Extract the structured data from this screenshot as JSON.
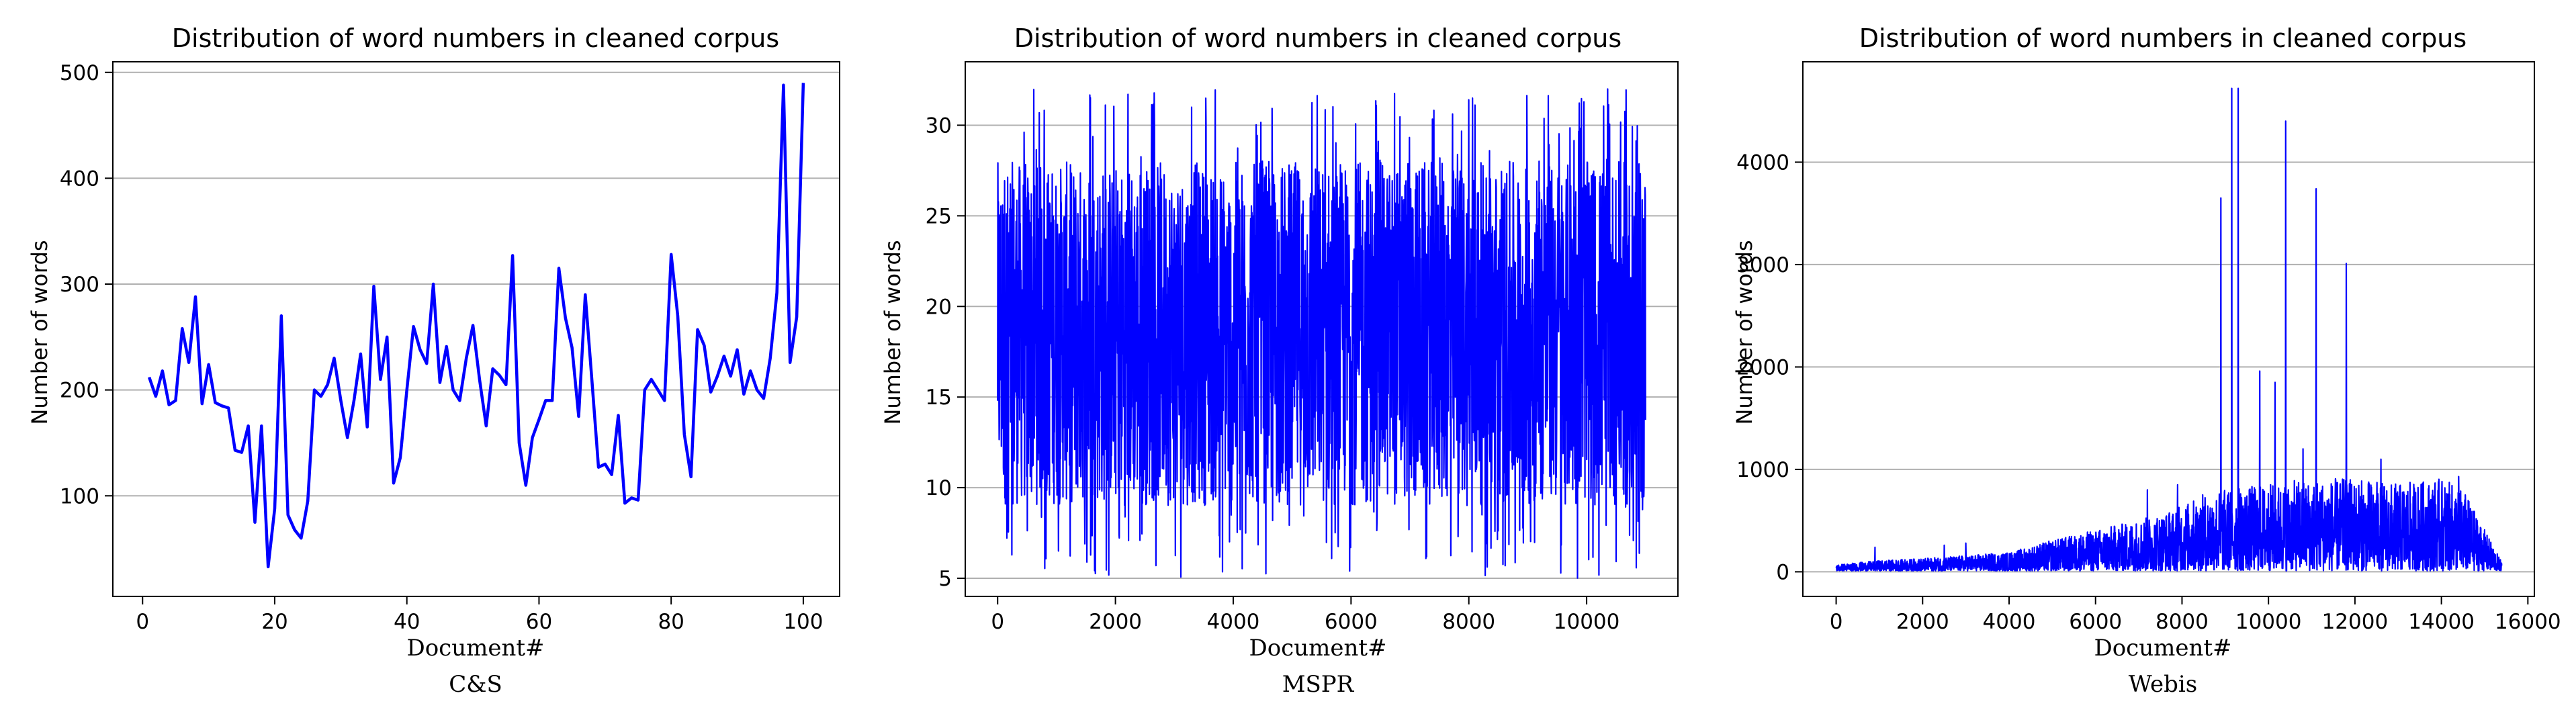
{
  "chart_data": [
    {
      "type": "line",
      "title": "Distribution of word numbers in cleaned corpus",
      "xlabel": "Document#",
      "ylabel": "Number of words",
      "caption": "C&S",
      "xlim": [
        -4.5,
        105.5
      ],
      "ylim": [
        5,
        510
      ],
      "xticks": [
        0,
        20,
        40,
        60,
        80,
        100
      ],
      "yticks": [
        100,
        200,
        300,
        400,
        500
      ],
      "grid": "y",
      "color": "#0000ff",
      "series": [
        {
          "x": [
            1,
            2,
            3,
            4,
            5,
            6,
            7,
            8,
            9,
            10,
            11,
            12,
            13,
            14,
            15,
            16,
            17,
            18,
            19,
            20,
            21,
            22,
            23,
            24,
            25,
            26,
            27,
            28,
            29,
            30,
            31,
            32,
            33,
            34,
            35,
            36,
            37,
            38,
            39,
            40,
            41,
            42,
            43,
            44,
            45,
            46,
            47,
            48,
            49,
            50,
            51,
            52,
            53,
            54,
            55,
            56,
            57,
            58,
            59,
            60,
            61,
            62,
            63,
            64,
            65,
            66,
            67,
            68,
            69,
            70,
            71,
            72,
            73,
            74,
            75,
            76,
            77,
            78,
            79,
            80,
            81,
            82,
            83,
            84,
            85,
            86,
            87,
            88,
            89,
            90,
            91,
            92,
            93,
            94,
            95,
            96,
            97,
            98,
            99,
            100
          ],
          "values": [
            212,
            194,
            218,
            186,
            190,
            258,
            226,
            288,
            187,
            224,
            188,
            185,
            183,
            143,
            141,
            166,
            75,
            166,
            33,
            88,
            270,
            82,
            68,
            60,
            95,
            200,
            194,
            205,
            230,
            190,
            155,
            190,
            234,
            165,
            298,
            210,
            250,
            112,
            136,
            200,
            260,
            238,
            225,
            300,
            207,
            241,
            200,
            190,
            230,
            261,
            210,
            166,
            220,
            214,
            205,
            327,
            150,
            110,
            155,
            172,
            190,
            190,
            315,
            268,
            240,
            175,
            290,
            210,
            127,
            130,
            120,
            176,
            93,
            98,
            96,
            200,
            210,
            200,
            190,
            328,
            270,
            158,
            118,
            257,
            242,
            198,
            213,
            232,
            213,
            238,
            196,
            218,
            200,
            192,
            230,
            292,
            488,
            226,
            269,
            490
          ]
        }
      ]
    },
    {
      "type": "line",
      "title": "Distribution of word numbers in cleaned corpus",
      "xlabel": "Document#",
      "ylabel": "Number of words",
      "caption": "MSPR",
      "xlim": [
        -550,
        11550
      ],
      "ylim": [
        4,
        33.5
      ],
      "xticks": [
        0,
        2000,
        4000,
        6000,
        8000,
        10000
      ],
      "yticks": [
        5,
        10,
        15,
        20,
        25,
        30
      ],
      "grid": "y",
      "color": "#0000ff",
      "n_documents": 11000,
      "value_range": [
        5,
        32
      ],
      "typical_band": [
        9,
        28
      ]
    },
    {
      "type": "line",
      "title": "Distribution of word numbers in cleaned corpus",
      "xlabel": "Document#",
      "ylabel": "Number of words",
      "caption": "Webis",
      "xlim": [
        -770,
        16150
      ],
      "ylim": [
        -240,
        4980
      ],
      "xticks": [
        0,
        2000,
        4000,
        6000,
        8000,
        10000,
        12000,
        14000,
        16000
      ],
      "yticks": [
        0,
        1000,
        2000,
        3000,
        4000
      ],
      "grid": "y",
      "color": "#0000ff",
      "n_documents": 15400,
      "envelope_upper": {
        "x": [
          0,
          1000,
          2000,
          3000,
          4000,
          5000,
          6000,
          7000,
          7800,
          8500,
          9000,
          10000,
          11000,
          12000,
          13000,
          14000,
          14500,
          15400
        ],
        "values": [
          60,
          100,
          120,
          150,
          180,
          300,
          400,
          500,
          600,
          750,
          800,
          850,
          900,
          900,
          850,
          900,
          800,
          80
        ]
      },
      "peaks": [
        {
          "x": 900,
          "value": 240
        },
        {
          "x": 2500,
          "value": 260
        },
        {
          "x": 3000,
          "value": 280
        },
        {
          "x": 7200,
          "value": 800
        },
        {
          "x": 7900,
          "value": 850
        },
        {
          "x": 8900,
          "value": 3650
        },
        {
          "x": 9150,
          "value": 4720
        },
        {
          "x": 9300,
          "value": 4720
        },
        {
          "x": 9800,
          "value": 1960
        },
        {
          "x": 10150,
          "value": 1850
        },
        {
          "x": 10400,
          "value": 4400
        },
        {
          "x": 10800,
          "value": 1200
        },
        {
          "x": 11100,
          "value": 3740
        },
        {
          "x": 11800,
          "value": 3010
        },
        {
          "x": 12600,
          "value": 1100
        },
        {
          "x": 14400,
          "value": 930
        }
      ]
    }
  ]
}
